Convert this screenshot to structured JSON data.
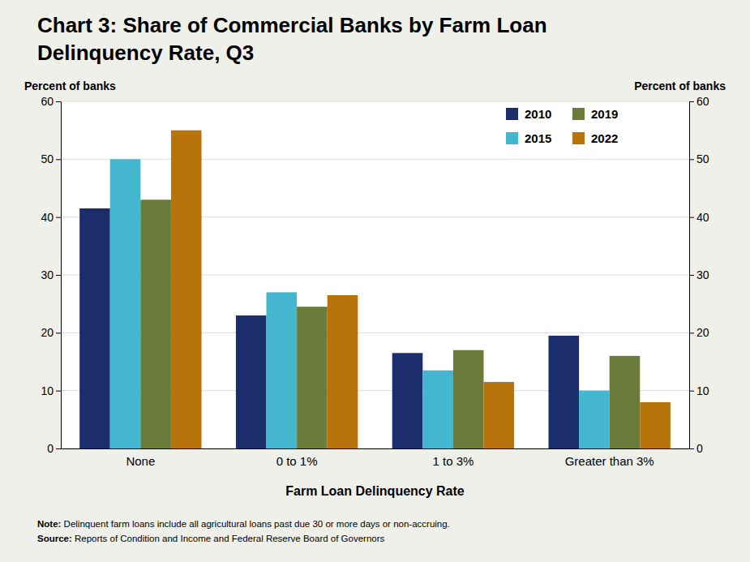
{
  "chart_data": {
    "type": "bar",
    "title": [
      "Chart 3: Share of Commercial Banks by Farm Loan",
      "Delinquency Rate, Q3"
    ],
    "xlabel": "Farm Loan Delinquency Rate",
    "ylabel": "Percent of banks",
    "y2label": "Percent of banks",
    "categories": [
      "None",
      "0 to 1%",
      "1 to 3%",
      "Greater than 3%"
    ],
    "series": [
      {
        "name": "2010",
        "color": "#1c2d6b",
        "values": [
          41.5,
          23.0,
          16.5,
          19.5
        ]
      },
      {
        "name": "2015",
        "color": "#45b6d0",
        "values": [
          50.0,
          27.0,
          13.5,
          10.0
        ]
      },
      {
        "name": "2019",
        "color": "#6b7c3a",
        "values": [
          43.0,
          24.5,
          17.0,
          16.0
        ]
      },
      {
        "name": "2022",
        "color": "#b8730a",
        "values": [
          55.0,
          26.5,
          11.5,
          8.0
        ]
      }
    ],
    "ylim": [
      0,
      60
    ],
    "yticks": [
      0,
      10,
      20,
      30,
      40,
      50,
      60
    ],
    "y2lim": [
      0,
      60
    ],
    "y2ticks": [
      0,
      10,
      20,
      30,
      40,
      50,
      60
    ],
    "grid": true,
    "legend": "upper right",
    "notes": [
      [
        "Note:",
        " Delinquent farm loans include all agricultural loans past due 30 or more days or non-accruing."
      ],
      [
        "Source:",
        " Reports of Condition and Income and Federal Reserve Board of Governors"
      ]
    ]
  }
}
